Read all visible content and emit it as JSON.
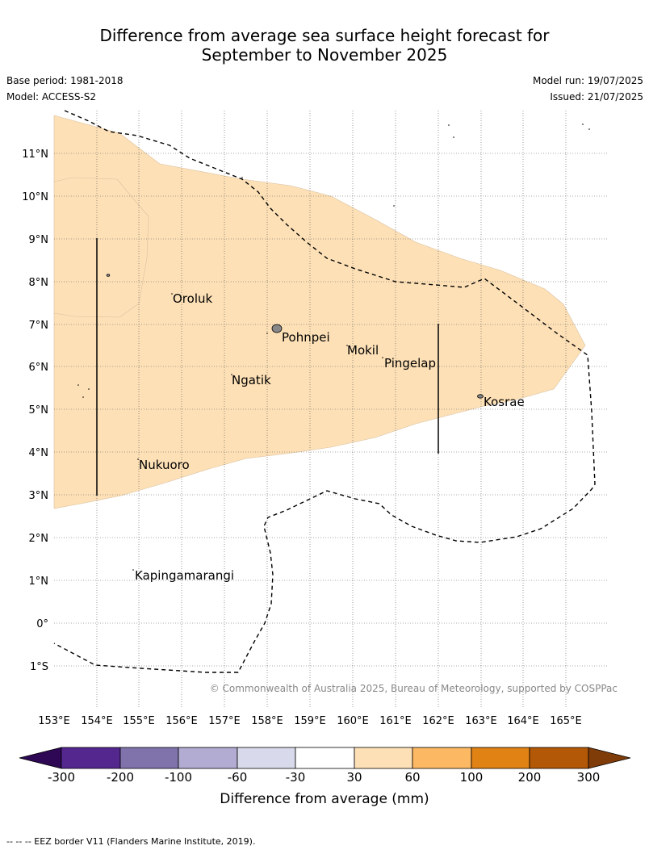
{
  "title_line1": "Difference from average sea surface height forecast for",
  "title_line2": "September to November 2025",
  "base_period": "Base period: 1981-2018",
  "model": "Model: ACCESS-S2",
  "model_run": "Model run: 19/07/2025",
  "issued": "Issued: 21/07/2025",
  "copyright": "© Commonwealth of Australia 2025, Bureau of Meteorology, supported by COSPPac",
  "footnote": "--  --  -- EEZ border V11 (Flanders Marine Institute, 2019).",
  "lon_labels": [
    "153°E",
    "154°E",
    "155°E",
    "156°E",
    "157°E",
    "158°E",
    "159°E",
    "160°E",
    "161°E",
    "162°E",
    "163°E",
    "164°E",
    "165°E"
  ],
  "lat_labels": [
    "11°N",
    "10°N",
    "9°N",
    "8°N",
    "7°N",
    "6°N",
    "5°N",
    "4°N",
    "3°N",
    "2°N",
    "1°N",
    "0°",
    "1°S"
  ],
  "places": [
    "Oroluk",
    "Pohnpei",
    "Mokil",
    "Pingelap",
    "Ngatik",
    "Kosrae",
    "Nukuoro",
    "Kapingamarangi"
  ],
  "colorbar": {
    "label": "Difference from average (mm)",
    "ticks": [
      "-300",
      "-200",
      "-100",
      "-60",
      "-30",
      "30",
      "60",
      "100",
      "200",
      "300"
    ],
    "colors": [
      "#2e0854",
      "#54278f",
      "#8073ac",
      "#b2abd2",
      "#d8daeb",
      "#ffffff",
      "#fee0b6",
      "#fdb863",
      "#e08214",
      "#b35806",
      "#7f3b08"
    ]
  },
  "anomaly_fill": "#fde0b6"
}
